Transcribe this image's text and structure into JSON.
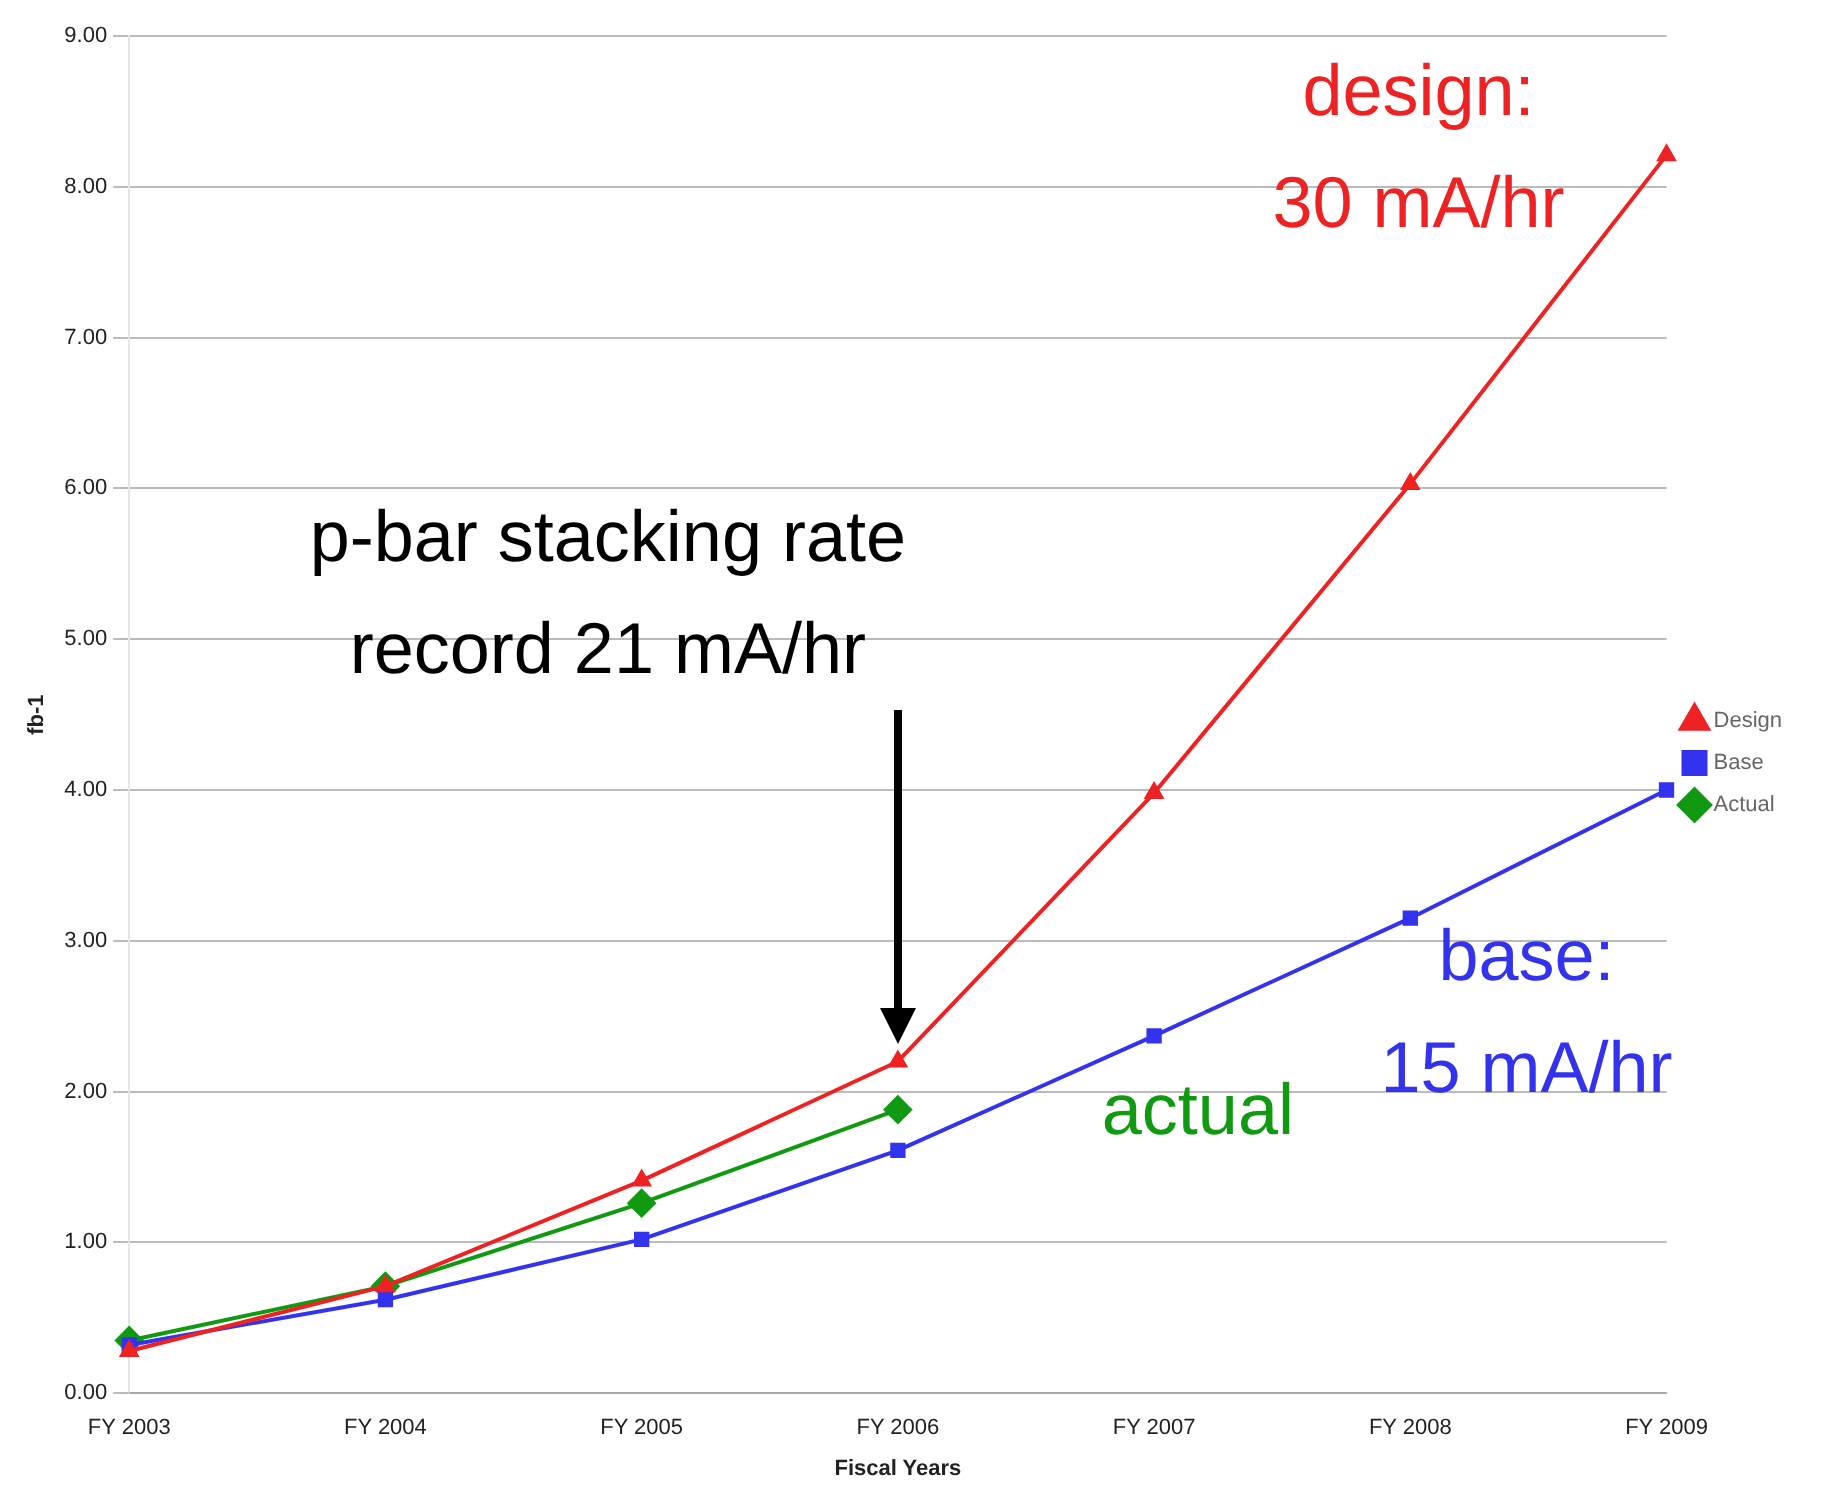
{
  "chart_data": {
    "type": "line",
    "xlabel": "Fiscal Years",
    "ylabel": "fb-1",
    "categories": [
      "FY 2003",
      "FY 2004",
      "FY 2005",
      "FY 2006",
      "FY 2007",
      "FY 2008",
      "FY 2009"
    ],
    "series": [
      {
        "name": "Actual",
        "color": "#119911",
        "marker": "diamond",
        "values": [
          0.35,
          0.71,
          1.26,
          1.88,
          null,
          null,
          null
        ]
      },
      {
        "name": "Base",
        "color": "#3333ee",
        "marker": "square",
        "values": [
          0.32,
          0.62,
          1.02,
          1.61,
          2.37,
          3.15,
          4.0
        ]
      },
      {
        "name": "Design",
        "color": "#ee2222",
        "marker": "triangle",
        "values": [
          0.28,
          0.71,
          1.41,
          2.2,
          3.98,
          6.03,
          8.21
        ]
      }
    ],
    "ylim": [
      0,
      9
    ],
    "yticks": [
      {
        "value": 0,
        "label": "0.00"
      },
      {
        "value": 1,
        "label": "1.00"
      },
      {
        "value": 2,
        "label": "2.00"
      },
      {
        "value": 3,
        "label": "3.00"
      },
      {
        "value": 4,
        "label": "4.00"
      },
      {
        "value": 5,
        "label": "5.00"
      },
      {
        "value": 6,
        "label": "6.00"
      },
      {
        "value": 7,
        "label": "7.00"
      },
      {
        "value": 8,
        "label": "8.00"
      },
      {
        "value": 9,
        "label": "9.00"
      }
    ],
    "grid": "y",
    "legend": "right",
    "line_style": "solid",
    "annotations": [
      "p-bar stacking rate\nrecord 21 mA/hr",
      {
        "text": "design:\n30 mA/hr",
        "x": "FY 2009",
        "y": 8.21
      },
      {
        "text": "base:\n15 mA/hr",
        "x": "FY 2009",
        "y": 4.0
      },
      {
        "text": "actual",
        "x": "FY 2006",
        "y": 1.88
      }
    ]
  }
}
